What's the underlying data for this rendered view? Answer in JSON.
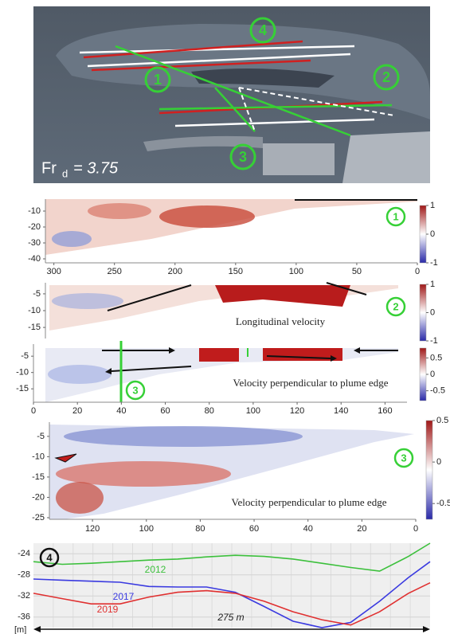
{
  "photo": {
    "markers": [
      "4",
      "1",
      "2",
      "3"
    ],
    "froude": {
      "symbol": "Fr",
      "subscript": "d",
      "value": "= 3.75"
    }
  },
  "panels": [
    {
      "marker": "1",
      "xlim": [
        307,
        0
      ],
      "ylim": [
        -42.5,
        -2.5
      ],
      "xticks": [
        300,
        250,
        200,
        150,
        100,
        50,
        0
      ],
      "yticks": [
        -10,
        -20,
        -30,
        -40
      ],
      "colorbar": {
        "lim": [
          -1,
          1
        ],
        "ticks": [
          1,
          0,
          -1
        ]
      }
    },
    {
      "marker": "2",
      "ylim": [
        -18.3,
        -1.7
      ],
      "yticks": [
        -5,
        -10,
        -15
      ],
      "label": "Longitudinal velocity",
      "colorbar": {
        "lim": [
          -1,
          1
        ],
        "ticks": [
          1,
          0,
          -1
        ]
      }
    },
    {
      "marker": "3",
      "xlim": [
        0,
        170
      ],
      "ylim": [
        -19.1,
        -1.3
      ],
      "xticks": [
        0,
        20,
        40,
        60,
        80,
        100,
        120,
        140,
        160
      ],
      "yticks": [
        -5,
        -10,
        -15
      ],
      "label": "Velocity perpendicular to plume edge",
      "colorbar": {
        "lim": [
          -0.8,
          0.8
        ],
        "ticks": [
          0.5,
          0,
          -0.5
        ]
      }
    },
    {
      "marker": "3",
      "xlim": [
        136,
        0
      ],
      "ylim": [
        -25.4,
        -1.5
      ],
      "xticks": [
        120,
        100,
        80,
        60,
        40,
        20,
        0
      ],
      "yticks": [
        -5,
        -10,
        -15,
        -20,
        -25
      ],
      "label": "Velocity perpendicular to plume edge",
      "colorbar": {
        "lim": [
          -0.69,
          0.5
        ],
        "ticks": [
          0.5,
          0,
          -0.5
        ]
      }
    }
  ],
  "chart_data": {
    "type": "line",
    "marker": "4",
    "y_unit": "[m]",
    "annotation": "275 m",
    "x": [
      0,
      20,
      40,
      60,
      80,
      100,
      120,
      140,
      160,
      180,
      200,
      220,
      240,
      260,
      275
    ],
    "xlim": [
      0,
      275
    ],
    "ylim": [
      -38,
      -22
    ],
    "yticks": [
      -24,
      -28,
      -32,
      -36
    ],
    "grid": true,
    "series": [
      {
        "name": "2012",
        "color": "#3cc03c",
        "values": [
          -25.5,
          -26,
          -25.8,
          -25.5,
          -25.2,
          -25,
          -24.6,
          -24.3,
          -24.5,
          -25,
          -25.8,
          -26.6,
          -27.3,
          -24.5,
          -22
        ]
      },
      {
        "name": "2017",
        "color": "#3a3ae0",
        "values": [
          -28.8,
          -29,
          -29.2,
          -29.4,
          -30.2,
          -30.3,
          -30.3,
          -31.3,
          -34,
          -36.8,
          -38,
          -37,
          -33,
          -28.5,
          -25.5
        ]
      },
      {
        "name": "2019",
        "color": "#e03030",
        "values": [
          -31.5,
          -32.5,
          -33.5,
          -33.5,
          -32.2,
          -31.3,
          -31,
          -31.5,
          -33,
          -35,
          -36.5,
          -37.5,
          -35,
          -31.5,
          -29.5
        ]
      }
    ]
  }
}
